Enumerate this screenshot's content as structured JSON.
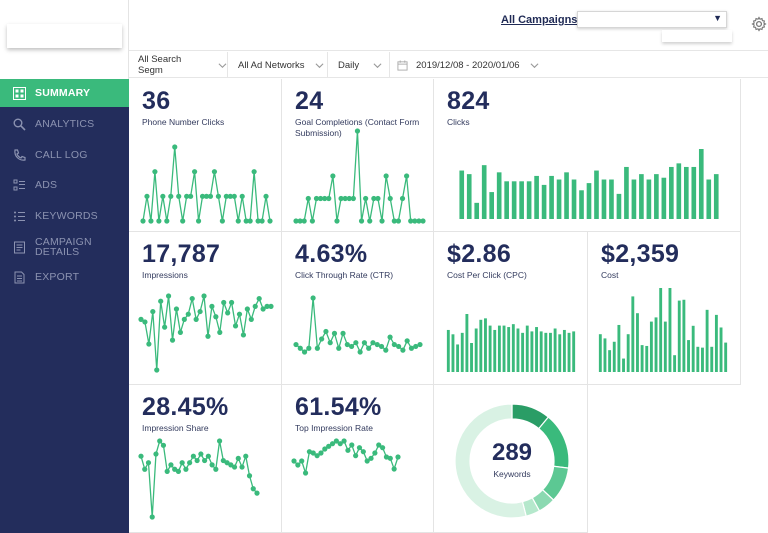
{
  "header": {
    "breadcrumb_link": "All Campaigns",
    "breadcrumb_sep": ">",
    "campaign_select_value": "",
    "settings_icon": "gear-icon"
  },
  "filters": {
    "segment": "All Search Segm",
    "network": "All Ad Networks",
    "granularity": "Daily",
    "date_range": "2019/12/08 - 2020/01/06"
  },
  "sidebar": {
    "items": [
      {
        "label": "SUMMARY",
        "icon": "summary-icon",
        "active": true
      },
      {
        "label": "ANALYTICS",
        "icon": "search-icon",
        "active": false
      },
      {
        "label": "CALL LOG",
        "icon": "phone-icon",
        "active": false
      },
      {
        "label": "ADS",
        "icon": "list-icon",
        "active": false
      },
      {
        "label": "KEYWORDS",
        "icon": "keywords-icon",
        "active": false
      },
      {
        "label": "CAMPAIGN",
        "label2": "DETAILS",
        "icon": "details-icon",
        "active": false
      },
      {
        "label": "EXPORT",
        "icon": "export-icon",
        "active": false
      }
    ]
  },
  "colors": {
    "accent": "#3aba7c",
    "navy": "#232d5c",
    "donut_light": "#d9f2e4"
  },
  "tiles": {
    "phone_clicks": {
      "value": "36",
      "label": "Phone Number Clicks"
    },
    "goal_completions": {
      "value": "24",
      "label": "Goal Completions (Contact Form Submission)"
    },
    "clicks": {
      "value": "824",
      "label": "Clicks"
    },
    "impressions": {
      "value": "17,787",
      "label": "Impressions"
    },
    "ctr": {
      "value": "4.63%",
      "label": "Click Through Rate (CTR)"
    },
    "cpc": {
      "value": "$2.86",
      "label": "Cost Per Click (CPC)"
    },
    "cost": {
      "value": "$2,359",
      "label": "Cost"
    },
    "impression_share": {
      "value": "28.45%",
      "label": "Impression Share"
    },
    "top_impression_rate": {
      "value": "61.54%",
      "label": "Top Impression Rate"
    },
    "keywords": {
      "value": "289",
      "label": "Keywords"
    }
  },
  "chart_data": [
    {
      "id": "phone_clicks",
      "type": "line",
      "values": [
        0,
        1,
        0,
        2,
        0,
        1,
        0,
        1,
        3,
        1,
        0,
        1,
        1,
        2,
        0,
        1,
        1,
        1,
        2,
        1,
        0,
        1,
        1,
        1,
        0,
        1,
        0,
        0,
        2,
        0,
        0,
        1,
        0
      ]
    },
    {
      "id": "goal_completions",
      "type": "line",
      "values": [
        0,
        0,
        0,
        1,
        0,
        1,
        1,
        1,
        1,
        2,
        0,
        1,
        1,
        1,
        1,
        4,
        0,
        1,
        0,
        1,
        1,
        0,
        2,
        1,
        0,
        0,
        1,
        2,
        0,
        0,
        0,
        0
      ]
    },
    {
      "id": "clicks",
      "type": "bar",
      "values": [
        27,
        25,
        9,
        30,
        15,
        26,
        21,
        21,
        21,
        21,
        24,
        19,
        24,
        22,
        26,
        22,
        16,
        20,
        27,
        22,
        22,
        14,
        29,
        22,
        25,
        22,
        25,
        23,
        29,
        31,
        29,
        29,
        39,
        22,
        25
      ]
    },
    {
      "id": "impressions",
      "type": "line",
      "values": [
        600,
        590,
        505,
        630,
        405,
        670,
        570,
        690,
        520,
        640,
        550,
        600,
        620,
        680,
        600,
        630,
        690,
        535,
        650,
        610,
        550,
        665,
        625,
        665,
        575,
        620,
        540,
        640,
        600,
        650,
        680,
        640,
        650,
        650
      ]
    },
    {
      "id": "ctr",
      "type": "line",
      "values": [
        3.9,
        3.7,
        3.5,
        3.7,
        6.4,
        3.7,
        4.2,
        4.6,
        4.0,
        4.5,
        3.7,
        4.5,
        3.9,
        3.8,
        4.0,
        3.5,
        4.0,
        3.7,
        4.0,
        3.9,
        3.8,
        3.6,
        4.3,
        3.9,
        3.8,
        3.6,
        4.1,
        3.7,
        3.8,
        3.9
      ]
    },
    {
      "id": "cpc",
      "type": "bar",
      "values": [
        2.9,
        2.6,
        1.9,
        2.7,
        4.0,
        2.0,
        3.0,
        3.6,
        3.7,
        3.2,
        2.9,
        3.2,
        3.2,
        3.1,
        3.3,
        3.0,
        2.7,
        3.2,
        2.8,
        3.1,
        2.8,
        2.7,
        2.7,
        3.0,
        2.6,
        2.9,
        2.7,
        2.8
      ]
    },
    {
      "id": "cost",
      "type": "bar",
      "values": [
        45,
        40,
        26,
        36,
        56,
        16,
        45,
        90,
        70,
        32,
        31,
        60,
        65,
        100,
        60,
        100,
        20,
        85,
        86,
        38,
        55,
        30,
        29,
        74,
        30,
        68,
        53,
        35
      ]
    },
    {
      "id": "impression_share",
      "type": "line",
      "values": [
        31,
        25,
        28,
        3,
        32,
        38,
        36,
        24,
        27,
        25,
        24,
        28,
        25,
        28,
        31,
        29,
        32,
        29,
        31,
        27,
        25,
        38,
        29,
        28,
        27,
        26,
        30,
        26,
        31,
        22,
        16,
        14
      ]
    },
    {
      "id": "top_impression_rate",
      "type": "line",
      "values": [
        58,
        55,
        58,
        49,
        65,
        64,
        62,
        64,
        67,
        69,
        71,
        73,
        71,
        73,
        66,
        70,
        62,
        68,
        65,
        58,
        60,
        64,
        70,
        68,
        61,
        60,
        52,
        61
      ]
    },
    {
      "id": "keywords_donut",
      "type": "pie",
      "values": [
        11,
        16,
        10,
        5,
        4,
        54
      ]
    }
  ]
}
